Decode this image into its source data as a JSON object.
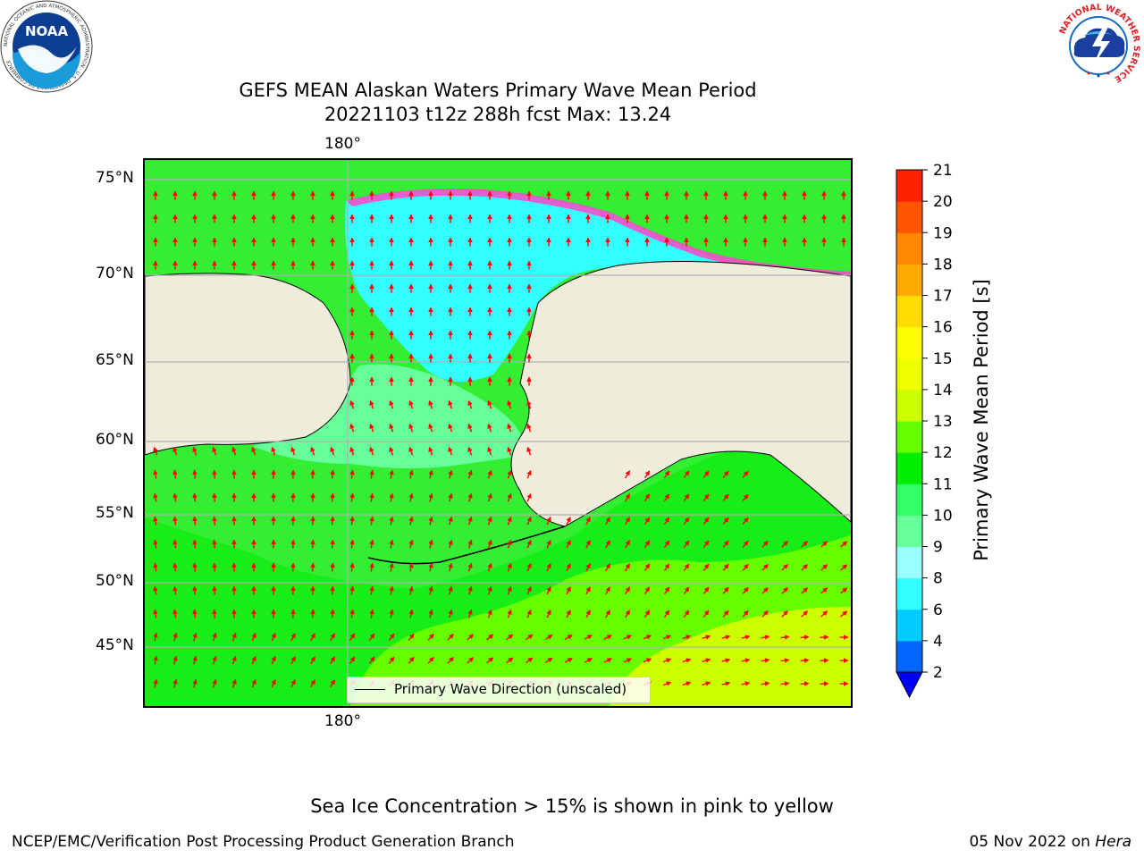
{
  "title": {
    "line1": "GEFS MEAN Alaskan Waters Primary Wave Mean Period",
    "line2": "20221103 t12z 288h fcst   Max: 13.24"
  },
  "map": {
    "top_lon_label": "180°",
    "bottom_lon_label": "180°",
    "lat_labels": [
      "75°N",
      "70°N",
      "65°N",
      "60°N",
      "55°N",
      "50°N",
      "45°N"
    ],
    "land_color": "#efecdc",
    "coast_color": "#000000",
    "grid_color": "#b0b0b0",
    "arrow_color": "#ff0000",
    "legend_label": "Primary Wave Direction (unscaled)"
  },
  "colorbar": {
    "label": "Primary Wave Mean Period [s]",
    "ticks": [
      "2",
      "4",
      "6",
      "8",
      "9",
      "10",
      "11",
      "12",
      "13",
      "14",
      "15",
      "16",
      "17",
      "18",
      "19",
      "20",
      "21"
    ],
    "colors": [
      "#0066ff",
      "#00ccff",
      "#33ffff",
      "#99ffff",
      "#66ff99",
      "#33ff66",
      "#00ee00",
      "#66ff00",
      "#ccff00",
      "#eeff00",
      "#ffff00",
      "#ffdd00",
      "#ffaa00",
      "#ff8800",
      "#ff5500",
      "#ff2200"
    ],
    "extend_color": "#0000ff"
  },
  "note": "Sea Ice Concentration > 15% is shown in pink to yellow",
  "footer": {
    "left": "NCEP/EMC/Verification Post Processing Product Generation Branch",
    "right_date": "05 Nov 2022 on ",
    "right_machine": "Hera"
  },
  "logos": {
    "noaa_text": "NOAA",
    "noaa_ring": "NATIONAL OCEANIC AND ATMOSPHERIC ADMINISTRATION · U.S. DEPARTMENT OF COMMERCE",
    "nws_ring": "NATIONAL WEATHER SERVICE"
  }
}
